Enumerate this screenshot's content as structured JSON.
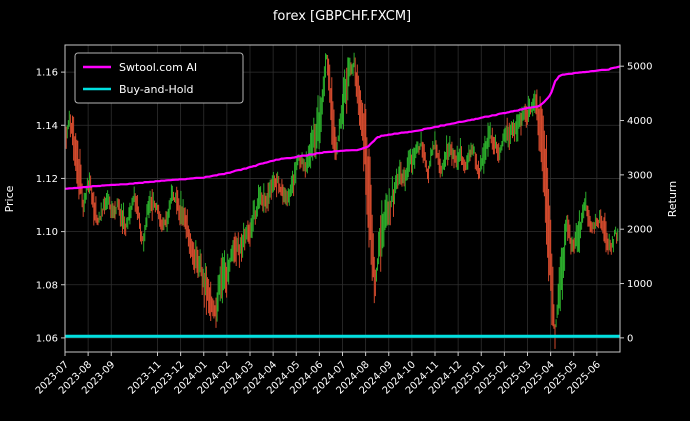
{
  "title": "forex [GBPCHF.FXCM]",
  "axes": {
    "left_label": "Price",
    "right_label": "Return",
    "price_ticks": [
      "1.06",
      "1.08",
      "1.10",
      "1.12",
      "1.14",
      "1.16"
    ],
    "return_ticks": [
      "0",
      "1000",
      "2000",
      "3000",
      "4000",
      "5000"
    ],
    "x_ticks": [
      {
        "label": "2023-07",
        "m": 0
      },
      {
        "label": "2023-08",
        "m": 1
      },
      {
        "label": "2023-09",
        "m": 2
      },
      {
        "label": "2023-11",
        "m": 4
      },
      {
        "label": "2023-12",
        "m": 5
      },
      {
        "label": "2024-01",
        "m": 6
      },
      {
        "label": "2024-02",
        "m": 7
      },
      {
        "label": "2024-03",
        "m": 8
      },
      {
        "label": "2024-04",
        "m": 9
      },
      {
        "label": "2024-05",
        "m": 10
      },
      {
        "label": "2024-06",
        "m": 11
      },
      {
        "label": "2024-07",
        "m": 12
      },
      {
        "label": "2024-08",
        "m": 13
      },
      {
        "label": "2024-09",
        "m": 14
      },
      {
        "label": "2024-10",
        "m": 15
      },
      {
        "label": "2024-11",
        "m": 16
      },
      {
        "label": "2024-12",
        "m": 17
      },
      {
        "label": "2025-01",
        "m": 18
      },
      {
        "label": "2025-02",
        "m": 19
      },
      {
        "label": "2025-03",
        "m": 20
      },
      {
        "label": "2025-04",
        "m": 21
      },
      {
        "label": "2025-05",
        "m": 22
      },
      {
        "label": "2025-06",
        "m": 23
      }
    ]
  },
  "legend": {
    "items": [
      {
        "label": "Swtool.com AI",
        "color": "#ff00ff"
      },
      {
        "label": "Buy-and-Hold",
        "color": "#00e0e0"
      }
    ]
  },
  "colors": {
    "background": "#000000",
    "text": "#ffffff",
    "grid": "#2f2f2f",
    "frame": "#c9c9c9",
    "candle_up": "#2bab2b",
    "candle_down": "#d1492c",
    "ai_line": "#ff00ff",
    "buy_hold_line": "#00e0e0"
  },
  "chart_data": {
    "type": "line",
    "title": "forex [GBPCHF.FXCM]",
    "xlabel": "",
    "ylabel_left": "Price",
    "ylabel_right": "Return",
    "grid": true,
    "legend_position": "upper left",
    "x_unit": "months since 2023-07",
    "x_range_months": [
      0,
      24
    ],
    "x_tick_range": [
      "2023-07",
      "2025-06"
    ],
    "ylim_left": [
      1.0547,
      1.1702
    ],
    "ylim_right": [
      -260,
      5390
    ],
    "series": [
      {
        "name": "GBPCHF price",
        "type": "candlestick",
        "axis": "left",
        "anchors_t_price": [
          [
            0,
            1.134
          ],
          [
            0.2,
            1.145
          ],
          [
            0.5,
            1.128
          ],
          [
            0.8,
            1.11
          ],
          [
            1.1,
            1.118
          ],
          [
            1.4,
            1.104
          ],
          [
            1.7,
            1.112
          ],
          [
            2,
            1.106
          ],
          [
            2.3,
            1.113
          ],
          [
            2.6,
            1.103
          ],
          [
            3,
            1.11
          ],
          [
            3.3,
            1.097
          ],
          [
            3.6,
            1.106
          ],
          [
            4,
            1.112
          ],
          [
            4.3,
            1.104
          ],
          [
            4.7,
            1.111
          ],
          [
            5,
            1.105
          ],
          [
            5.4,
            1.096
          ],
          [
            5.8,
            1.088
          ],
          [
            6.1,
            1.078
          ],
          [
            6.4,
            1.066
          ],
          [
            6.55,
            1.063
          ],
          [
            6.8,
            1.08
          ],
          [
            7.2,
            1.088
          ],
          [
            7.6,
            1.094
          ],
          [
            8,
            1.1
          ],
          [
            8.4,
            1.107
          ],
          [
            8.8,
            1.114
          ],
          [
            9.2,
            1.121
          ],
          [
            9.6,
            1.118
          ],
          [
            10,
            1.127
          ],
          [
            10.4,
            1.124
          ],
          [
            10.8,
            1.134
          ],
          [
            11.1,
            1.147
          ],
          [
            11.3,
            1.168
          ],
          [
            11.5,
            1.15
          ],
          [
            11.75,
            1.133
          ],
          [
            12,
            1.143
          ],
          [
            12.3,
            1.158
          ],
          [
            12.5,
            1.163
          ],
          [
            12.75,
            1.147
          ],
          [
            13,
            1.132
          ],
          [
            13.2,
            1.108
          ],
          [
            13.4,
            1.076
          ],
          [
            13.6,
            1.095
          ],
          [
            13.9,
            1.106
          ],
          [
            14.2,
            1.113
          ],
          [
            14.6,
            1.121
          ],
          [
            15,
            1.128
          ],
          [
            15.4,
            1.133
          ],
          [
            15.7,
            1.124
          ],
          [
            16,
            1.131
          ],
          [
            16.3,
            1.121
          ],
          [
            16.6,
            1.128
          ],
          [
            17,
            1.133
          ],
          [
            17.3,
            1.125
          ],
          [
            17.6,
            1.131
          ],
          [
            17.9,
            1.124
          ],
          [
            18.2,
            1.129
          ],
          [
            18.5,
            1.134
          ],
          [
            18.8,
            1.128
          ],
          [
            19.1,
            1.134
          ],
          [
            19.5,
            1.138
          ],
          [
            19.9,
            1.143
          ],
          [
            20.3,
            1.147
          ],
          [
            20.6,
            1.135
          ],
          [
            20.85,
            1.112
          ],
          [
            21,
            1.085
          ],
          [
            21.2,
            1.062
          ],
          [
            21.45,
            1.082
          ],
          [
            21.7,
            1.102
          ],
          [
            21.9,
            1.093
          ],
          [
            22.2,
            1.104
          ],
          [
            22.5,
            1.111
          ],
          [
            22.8,
            1.103
          ],
          [
            23.1,
            1.11
          ],
          [
            23.35,
            1.1
          ],
          [
            23.6,
            1.095
          ],
          [
            23.8,
            1.103
          ],
          [
            23.95,
            1.097
          ]
        ]
      },
      {
        "name": "Swtool.com AI",
        "type": "line",
        "axis": "right",
        "anchors_t_return": [
          [
            0,
            2740
          ],
          [
            1,
            2780
          ],
          [
            2,
            2810
          ],
          [
            3,
            2845
          ],
          [
            4,
            2880
          ],
          [
            5,
            2915
          ],
          [
            6,
            2950
          ],
          [
            7,
            3030
          ],
          [
            8,
            3140
          ],
          [
            8.7,
            3230
          ],
          [
            9.3,
            3290
          ],
          [
            10,
            3330
          ],
          [
            10.7,
            3380
          ],
          [
            11.3,
            3420
          ],
          [
            12,
            3440
          ],
          [
            12.7,
            3460
          ],
          [
            13.1,
            3520
          ],
          [
            13.5,
            3690
          ],
          [
            13.8,
            3730
          ],
          [
            14.7,
            3780
          ],
          [
            15.3,
            3820
          ],
          [
            16,
            3880
          ],
          [
            16.7,
            3940
          ],
          [
            17.3,
            3990
          ],
          [
            18,
            4050
          ],
          [
            18.7,
            4110
          ],
          [
            19.3,
            4160
          ],
          [
            20,
            4230
          ],
          [
            20.5,
            4260
          ],
          [
            20.8,
            4380
          ],
          [
            21,
            4480
          ],
          [
            21.2,
            4720
          ],
          [
            21.4,
            4830
          ],
          [
            21.6,
            4850
          ],
          [
            22,
            4870
          ],
          [
            22.5,
            4890
          ],
          [
            23,
            4915
          ],
          [
            23.5,
            4940
          ],
          [
            24,
            4990
          ]
        ]
      },
      {
        "name": "Buy-and-Hold",
        "type": "line",
        "axis": "right",
        "constant_return": 30
      }
    ]
  }
}
